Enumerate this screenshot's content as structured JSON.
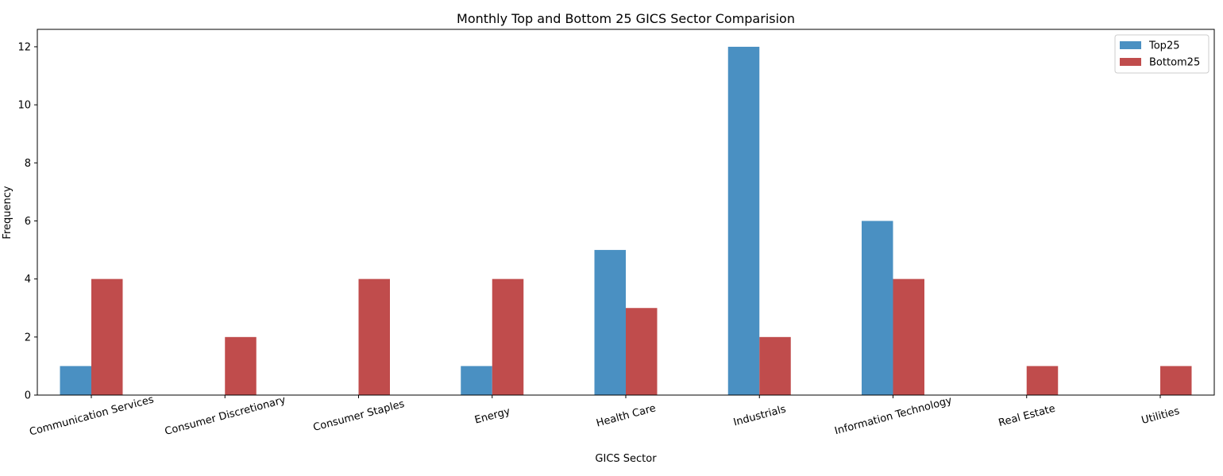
{
  "chart_data": {
    "type": "bar",
    "title": "Monthly Top and Bottom 25 GICS Sector Comparision",
    "xlabel": "GICS Sector",
    "ylabel": "Frequency",
    "categories": [
      "Communication Services",
      "Consumer Discretionary",
      "Consumer Staples",
      "Energy",
      "Health Care",
      "Industrials",
      "Information Technology",
      "Real Estate",
      "Utilities"
    ],
    "series": [
      {
        "name": "Top25",
        "color": "#4a90c2",
        "values": [
          1,
          0,
          0,
          1,
          5,
          12,
          6,
          0,
          0
        ]
      },
      {
        "name": "Bottom25",
        "color": "#c04c4c",
        "values": [
          4,
          2,
          4,
          4,
          3,
          2,
          4,
          1,
          1
        ]
      }
    ],
    "ylim": [
      0,
      12.6
    ],
    "yticks": [
      0,
      2,
      4,
      6,
      8,
      10,
      12
    ],
    "grid": false,
    "legend_position": "top-right"
  }
}
